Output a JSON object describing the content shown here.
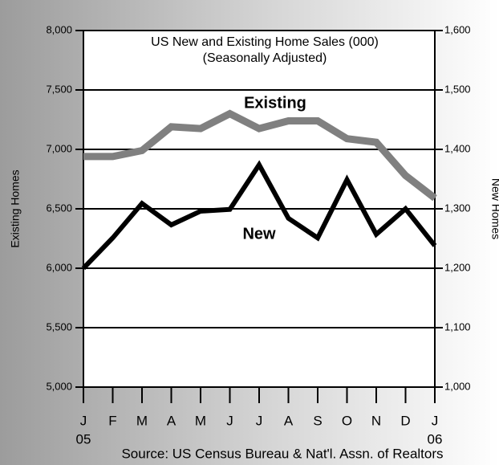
{
  "chart_data": {
    "type": "line",
    "title": "US New and Existing Home Sales (000)",
    "subtitle": "(Seasonally Adjusted)",
    "ylabel": "Existing Homes",
    "y2label": "New Homes",
    "source": "Source:  US Census Bureau & Nat'l. Assn. of Realtors",
    "categories": [
      "J",
      "F",
      "M",
      "A",
      "M",
      "J",
      "J",
      "A",
      "S",
      "O",
      "N",
      "D",
      "J"
    ],
    "year_labels": [
      "05",
      null,
      null,
      null,
      null,
      null,
      null,
      null,
      null,
      null,
      null,
      null,
      "06"
    ],
    "series": [
      {
        "name": "Existing",
        "color": "#808080",
        "axis": "y",
        "values": [
          6940,
          6940,
          6990,
          7190,
          7175,
          7300,
          7175,
          7240,
          7240,
          7090,
          7060,
          6780,
          6590
        ]
      },
      {
        "name": "New",
        "color": "#000000",
        "axis": "y2",
        "values": [
          1200,
          1251,
          1309,
          1273,
          1296,
          1299,
          1374,
          1284,
          1251,
          1349,
          1257,
          1300,
          1238
        ]
      }
    ],
    "ylim": [
      5000,
      8000
    ],
    "yticks": [
      {
        "value": 5000,
        "label": "5,000"
      },
      {
        "value": 5500,
        "label": "5,500"
      },
      {
        "value": 6000,
        "label": "6,000"
      },
      {
        "value": 6500,
        "label": "6,500"
      },
      {
        "value": 7000,
        "label": "7,000"
      },
      {
        "value": 7500,
        "label": "7,500"
      },
      {
        "value": 8000,
        "label": "8,000"
      }
    ],
    "y2lim": [
      1000,
      1600
    ],
    "y2ticks": [
      {
        "value": 1000,
        "label": "1,000"
      },
      {
        "value": 1100,
        "label": "1,100"
      },
      {
        "value": 1200,
        "label": "1,200"
      },
      {
        "value": 1300,
        "label": "1,300"
      },
      {
        "value": 1400,
        "label": "1,400"
      },
      {
        "value": 1500,
        "label": "1,500"
      },
      {
        "value": 1600,
        "label": "1,600"
      }
    ],
    "grid": true
  }
}
